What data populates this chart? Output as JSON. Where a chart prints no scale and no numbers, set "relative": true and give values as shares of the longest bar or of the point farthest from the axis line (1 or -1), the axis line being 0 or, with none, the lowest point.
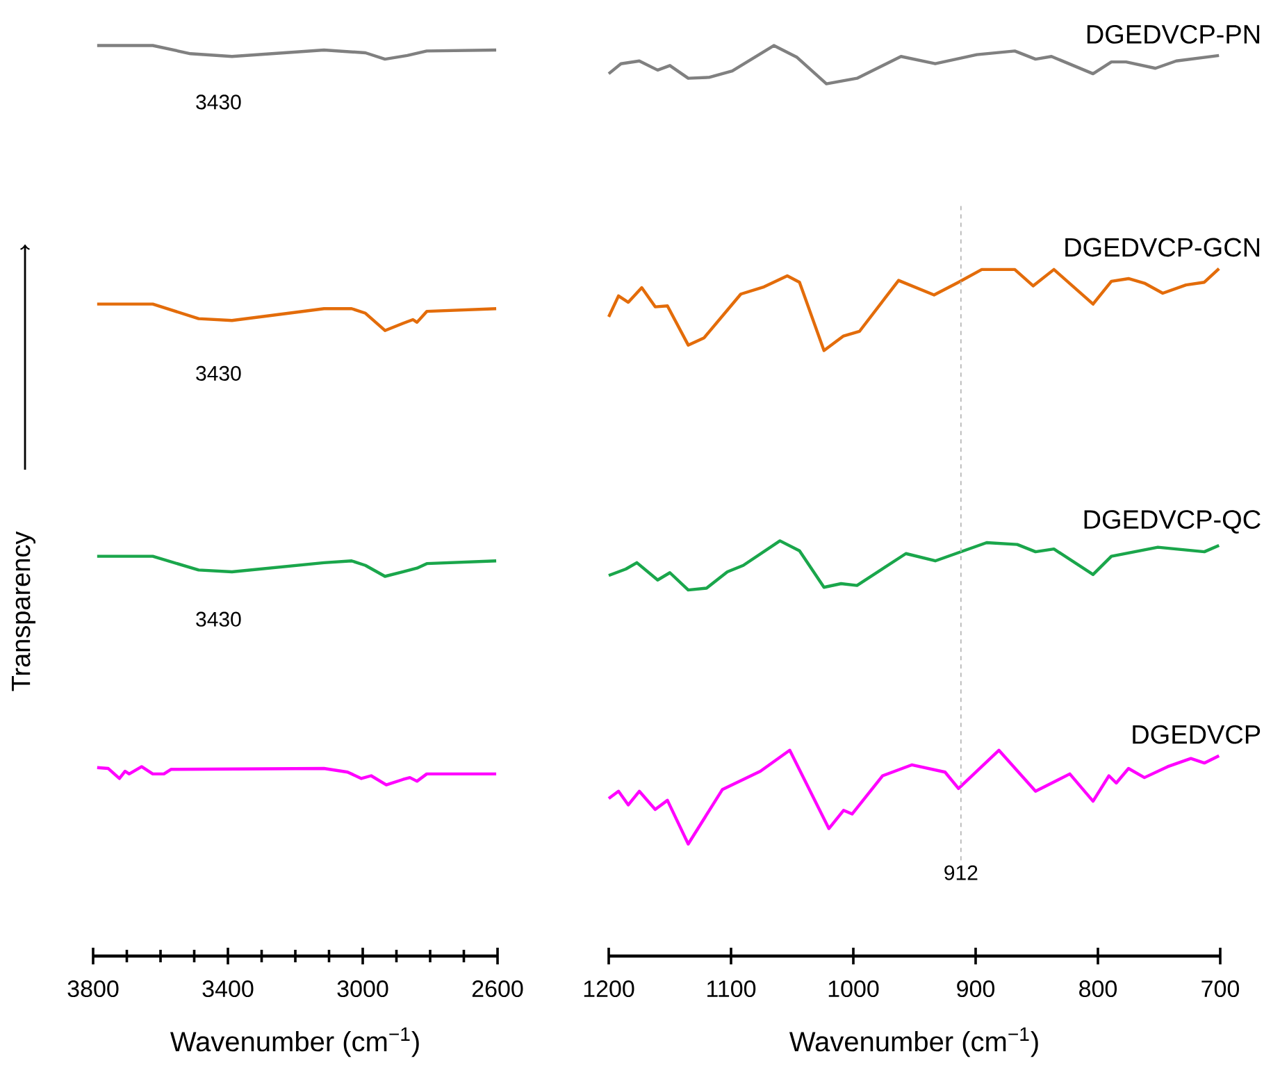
{
  "chart_data": [
    {
      "type": "line",
      "ylabel": "Transparency",
      "xlabel": "Wavenumber (cm$^{−1}$)",
      "relative": true,
      "xlim": [
        3800,
        2600
      ],
      "xticks": [
        3800,
        {
          "value": 3700,
          "label": null
        },
        {
          "value": 3600,
          "label": null
        },
        {
          "value": 3500,
          "label": null
        },
        3400,
        {
          "value": 3300,
          "label": null
        },
        {
          "value": 3200,
          "label": null
        },
        {
          "value": 3100,
          "label": null
        },
        3000,
        {
          "value": 2900,
          "label": null
        },
        {
          "value": 2800,
          "label": null
        },
        {
          "value": 2700,
          "label": null
        },
        2600
      ],
      "annotations": [
        "3430",
        "3430",
        "3430"
      ],
      "series": [
        {
          "color": "#808080",
          "x": [
            3788,
            3623,
            3511,
            3388,
            3115,
            2992,
            2934,
            2868,
            2810,
            2604
          ],
          "values": [
            1.0,
            1.0,
            0.991,
            0.988,
            0.995,
            0.992,
            0.985,
            0.989,
            0.994,
            0.995
          ]
        },
        {
          "color": "#e36c0a",
          "x": [
            3788,
            3623,
            3487,
            3388,
            3115,
            3033,
            2992,
            2934,
            2880,
            2851,
            2839,
            2810,
            2604
          ],
          "values": [
            0.716,
            0.716,
            0.7,
            0.698,
            0.711,
            0.711,
            0.706,
            0.687,
            0.695,
            0.699,
            0.696,
            0.708,
            0.711
          ]
        },
        {
          "color": "#1aa64b",
          "x": [
            3788,
            3623,
            3487,
            3388,
            3115,
            3033,
            2992,
            2934,
            2880,
            2839,
            2810,
            2604
          ],
          "values": [
            0.439,
            0.439,
            0.424,
            0.422,
            0.432,
            0.434,
            0.429,
            0.417,
            0.422,
            0.426,
            0.431,
            0.434
          ]
        },
        {
          "color": "#ff00ff",
          "x": [
            3788,
            3755,
            3722,
            3705,
            3693,
            3656,
            3623,
            3590,
            3569,
            3115,
            3045,
            3004,
            2975,
            2930,
            2880,
            2860,
            2839,
            2810,
            2604
          ],
          "values": [
            0.207,
            0.206,
            0.195,
            0.203,
            0.2,
            0.208,
            0.2,
            0.2,
            0.205,
            0.206,
            0.202,
            0.195,
            0.198,
            0.188,
            0.194,
            0.196,
            0.192,
            0.2,
            0.2
          ]
        }
      ]
    },
    {
      "type": "line",
      "xlabel": "Wavenumber (cm$^{−1}$)",
      "relative": true,
      "xlim": [
        1200,
        700
      ],
      "xticks": [
        1200,
        1100,
        1000,
        900,
        800,
        700
      ],
      "ref_lines": [
        {
          "axis": "x",
          "value": 912,
          "label": "912",
          "color": "#b0b0b0",
          "line_style": "dashed"
        }
      ],
      "series": [
        {
          "name": "DGEDVCP-PN",
          "color": "#808080",
          "x": [
            1200,
            1190,
            1175,
            1160,
            1150,
            1135,
            1118,
            1099,
            1065,
            1046,
            1022,
            997,
            961,
            933,
            899,
            868,
            851,
            838,
            804,
            789,
            777,
            753,
            736,
            701
          ],
          "values": [
            0.969,
            0.98,
            0.983,
            0.973,
            0.978,
            0.964,
            0.965,
            0.972,
            1.0,
            0.987,
            0.958,
            0.964,
            0.988,
            0.98,
            0.99,
            0.994,
            0.985,
            0.988,
            0.969,
            0.982,
            0.982,
            0.975,
            0.983,
            0.989
          ]
        },
        {
          "name": "DGEDVCP-GCN",
          "color": "#e36c0a",
          "x": [
            1200,
            1192,
            1184,
            1173,
            1162,
            1152,
            1135,
            1122,
            1092,
            1073,
            1054,
            1044,
            1024,
            1008,
            995,
            963,
            934,
            914,
            895,
            868,
            853,
            836,
            804,
            789,
            775,
            762,
            747,
            728,
            713,
            701
          ],
          "values": [
            0.702,
            0.725,
            0.718,
            0.734,
            0.713,
            0.714,
            0.671,
            0.679,
            0.727,
            0.735,
            0.747,
            0.74,
            0.665,
            0.681,
            0.686,
            0.742,
            0.726,
            0.74,
            0.754,
            0.754,
            0.736,
            0.754,
            0.716,
            0.741,
            0.744,
            0.739,
            0.728,
            0.737,
            0.74,
            0.755
          ]
        },
        {
          "name": "DGEDVCP-QC",
          "color": "#1aa64b",
          "x": [
            1200,
            1186,
            1177,
            1160,
            1150,
            1135,
            1120,
            1103,
            1090,
            1060,
            1044,
            1024,
            1010,
            997,
            957,
            933,
            891,
            866,
            851,
            836,
            804,
            789,
            770,
            751,
            713,
            701
          ],
          "values": [
            0.418,
            0.425,
            0.432,
            0.413,
            0.421,
            0.402,
            0.404,
            0.422,
            0.429,
            0.456,
            0.445,
            0.405,
            0.409,
            0.407,
            0.442,
            0.434,
            0.454,
            0.452,
            0.444,
            0.447,
            0.419,
            0.439,
            0.444,
            0.449,
            0.444,
            0.451
          ]
        },
        {
          "name": "DGEDVCP",
          "color": "#ff00ff",
          "x": [
            1200,
            1192,
            1184,
            1175,
            1162,
            1152,
            1135,
            1107,
            1076,
            1052,
            1020,
            1008,
            1001,
            976,
            952,
            925,
            914,
            881,
            851,
            823,
            804,
            791,
            785,
            775,
            762,
            743,
            724,
            713,
            701
          ],
          "values": [
            0.173,
            0.181,
            0.166,
            0.181,
            0.161,
            0.171,
            0.123,
            0.183,
            0.203,
            0.226,
            0.14,
            0.16,
            0.156,
            0.198,
            0.21,
            0.202,
            0.184,
            0.226,
            0.181,
            0.2,
            0.17,
            0.198,
            0.19,
            0.206,
            0.196,
            0.208,
            0.217,
            0.212,
            0.22
          ]
        }
      ]
    }
  ]
}
